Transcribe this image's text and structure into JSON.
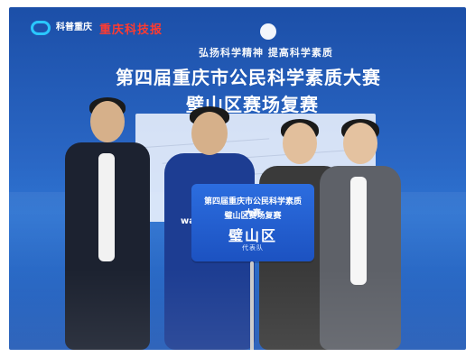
{
  "banner": {
    "logo_text": "科普重庆",
    "logo_subtext": "",
    "news_logo_text": "重庆科技报",
    "slogan": "弘扬科学精神 提高科学素质",
    "title_line1": "第四届重庆市公民科学素质大赛",
    "title_line2": "璧山区赛场复赛"
  },
  "placard": {
    "line1": "第四届重庆市公民科学素质大赛",
    "line2": "璧山区赛场复赛",
    "line3": "璧山区",
    "line4": "代表队"
  },
  "apparel": {
    "hoodie_text": "wassup"
  }
}
